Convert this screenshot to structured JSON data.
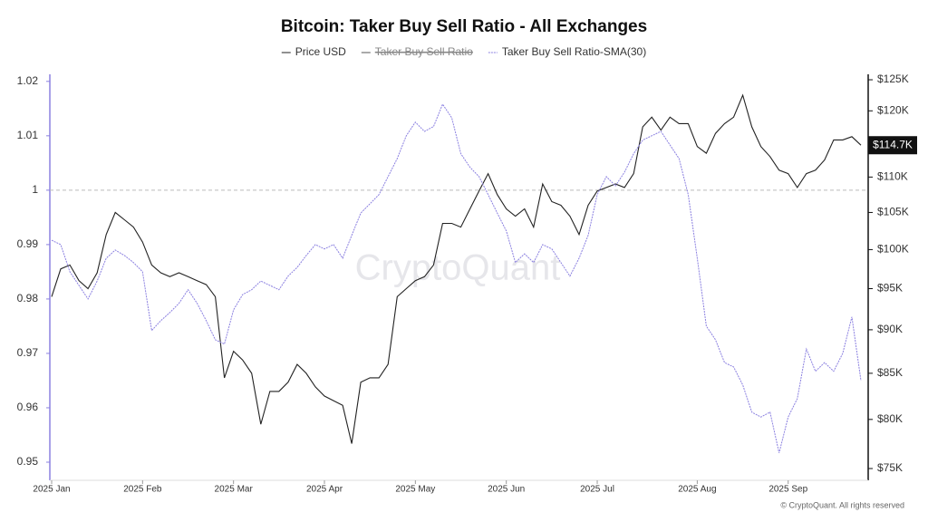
{
  "chart_data": {
    "type": "line",
    "title": "Bitcoin: Taker Buy Sell Ratio - All Exchanges",
    "watermark": "CryptoQuant",
    "footer": "© CryptoQuant. All rights reserved",
    "last_price_label": "$114.7K",
    "categories": [
      "2025 Jan",
      null,
      null,
      null,
      null,
      null,
      null,
      null,
      null,
      null,
      "2025 Feb",
      null,
      null,
      null,
      null,
      null,
      null,
      null,
      null,
      null,
      "2025 Mar",
      null,
      null,
      null,
      null,
      null,
      null,
      null,
      null,
      null,
      "2025 Apr",
      null,
      null,
      null,
      null,
      null,
      null,
      null,
      null,
      null,
      "2025 May",
      null,
      null,
      null,
      null,
      null,
      null,
      null,
      null,
      null,
      "2025 Jun",
      null,
      null,
      null,
      null,
      null,
      null,
      null,
      null,
      null,
      "2025 Jul",
      null,
      null,
      null,
      null,
      null,
      null,
      null,
      null,
      null,
      null,
      "2025 Aug",
      null,
      null,
      null,
      null,
      null,
      null,
      null,
      null,
      null,
      "2025 Sep",
      null,
      null,
      null,
      null,
      null,
      null,
      null,
      null
    ],
    "series": [
      {
        "name": "Price USD",
        "color": "#222222",
        "axis": "y2",
        "values": [
          94000,
          97500,
          98000,
          96000,
          95000,
          97000,
          102000,
          105000,
          104000,
          103000,
          101000,
          98000,
          97000,
          96500,
          97000,
          96500,
          96000,
          95500,
          94000,
          84500,
          87500,
          86500,
          85000,
          79500,
          83000,
          83000,
          84000,
          86000,
          85000,
          83500,
          82500,
          82000,
          81500,
          77500,
          84000,
          84500,
          84500,
          86000,
          94000,
          95000,
          96000,
          96500,
          98000,
          103500,
          103500,
          103000,
          105500,
          108000,
          110500,
          107500,
          105500,
          104500,
          105500,
          103000,
          109000,
          106500,
          106000,
          104500,
          102000,
          106000,
          108000,
          108500,
          109000,
          108500,
          110500,
          117500,
          119000,
          117000,
          119000,
          118000,
          118000,
          114500,
          113500,
          116500,
          118000,
          119000,
          122500,
          117500,
          114500,
          113000,
          111000,
          110500,
          108500,
          110500,
          111000,
          112500,
          115500,
          115500,
          116000,
          114700
        ]
      },
      {
        "name": "Taker Buy Sell Ratio",
        "color": "#555555",
        "hidden": true
      },
      {
        "name": "Taker Buy Sell Ratio-SMA(30)",
        "color": "#8b80e0",
        "values": [
          0.9908,
          0.99,
          0.985,
          0.9825,
          0.98,
          0.9833,
          0.9875,
          0.989,
          0.988,
          0.9867,
          0.985,
          0.9742,
          0.976,
          0.9775,
          0.9792,
          0.9817,
          0.9792,
          0.976,
          0.9725,
          0.9717,
          0.978,
          0.9808,
          0.9817,
          0.9833,
          0.9825,
          0.9817,
          0.9842,
          0.9858,
          0.988,
          0.99,
          0.9892,
          0.99,
          0.9875,
          0.9917,
          0.9958,
          0.9975,
          0.9992,
          1.0025,
          1.0058,
          1.01,
          1.0125,
          1.0108,
          1.0117,
          1.0158,
          1.0133,
          1.0067,
          1.0042,
          1.0025,
          0.9992,
          0.9958,
          0.9925,
          0.9867,
          0.9883,
          0.9867,
          0.99,
          0.9892,
          0.9867,
          0.9842,
          0.9875,
          0.9917,
          0.9992,
          1.0025,
          1.0008,
          1.0033,
          1.0067,
          1.0092,
          1.01,
          1.0108,
          1.0083,
          1.0058,
          0.9992,
          0.9875,
          0.975,
          0.9725,
          0.9683,
          0.9675,
          0.9642,
          0.9592,
          0.9583,
          0.9592,
          0.9517,
          0.9583,
          0.9617,
          0.9708,
          0.9667,
          0.9683,
          0.9667,
          0.97,
          0.9767,
          0.965
        ]
      }
    ],
    "ylim": [
      0.9475,
      1.0213
    ],
    "yticks": [
      0.95,
      0.96,
      0.97,
      0.98,
      0.99,
      1,
      1.01,
      1.02
    ],
    "reference_line": 1,
    "y2lim": [
      74290,
      125900
    ],
    "y2_log": true,
    "y2ticks": [
      {
        "value": 75000,
        "label": "$75K"
      },
      {
        "value": 80000,
        "label": "$80K"
      },
      {
        "value": 85000,
        "label": "$85K"
      },
      {
        "value": 90000,
        "label": "$90K"
      },
      {
        "value": 95000,
        "label": "$95K"
      },
      {
        "value": 100000,
        "label": "$100K"
      },
      {
        "value": 105000,
        "label": "$105K"
      },
      {
        "value": 110000,
        "label": "$110K"
      },
      {
        "value": 115000,
        "label": "$115K"
      },
      {
        "value": 120000,
        "label": "$120K"
      },
      {
        "value": 125000,
        "label": "$125K"
      }
    ]
  }
}
